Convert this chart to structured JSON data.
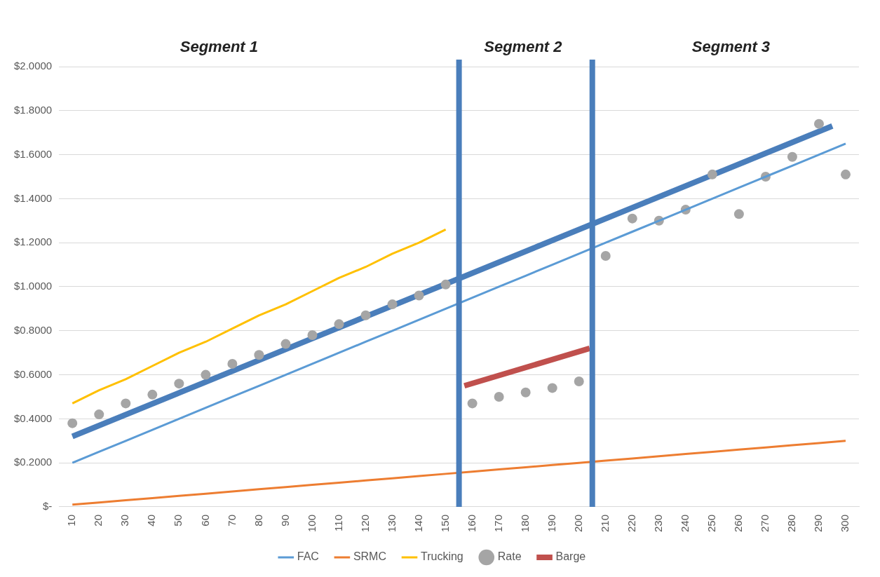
{
  "chart_data": {
    "type": "line",
    "annotations": [
      "Segment 1",
      "Segment 2",
      "Segment 3"
    ],
    "x": [
      10,
      20,
      30,
      40,
      50,
      60,
      70,
      80,
      90,
      100,
      110,
      120,
      130,
      140,
      150,
      160,
      170,
      180,
      190,
      200,
      210,
      220,
      230,
      240,
      250,
      260,
      270,
      280,
      290,
      300
    ],
    "series": [
      {
        "name": "FAC",
        "color": "#5b9bd5",
        "values": [
          0.2,
          0.25,
          0.3,
          0.35,
          0.4,
          0.45,
          0.5,
          0.55,
          0.6,
          0.65,
          0.7,
          0.75,
          0.8,
          0.85,
          0.9,
          0.95,
          1.0,
          1.05,
          1.1,
          1.15,
          1.2,
          1.25,
          1.3,
          1.35,
          1.4,
          1.45,
          1.5,
          1.55,
          1.6,
          1.65
        ]
      },
      {
        "name": "SRMC",
        "color": "#ed7d31",
        "values": [
          0.01,
          0.02,
          0.03,
          0.04,
          0.05,
          0.06,
          0.07,
          0.08,
          0.09,
          0.1,
          0.11,
          0.12,
          0.13,
          0.14,
          0.15,
          0.16,
          0.17,
          0.18,
          0.19,
          0.2,
          0.21,
          0.22,
          0.23,
          0.24,
          0.25,
          0.26,
          0.27,
          0.28,
          0.29,
          0.3
        ]
      },
      {
        "name": "Trucking",
        "color": "#ffc000",
        "x": [
          10,
          20,
          30,
          40,
          50,
          60,
          70,
          80,
          90,
          100,
          110,
          120,
          130,
          140,
          150
        ],
        "values": [
          0.47,
          0.53,
          0.58,
          0.64,
          0.7,
          0.75,
          0.81,
          0.87,
          0.92,
          0.98,
          1.04,
          1.09,
          1.15,
          1.2,
          1.26
        ]
      },
      {
        "name": "Rate",
        "type": "scatter",
        "marker": "circle",
        "color": "#a5a5a5",
        "values": [
          0.38,
          0.42,
          0.47,
          0.51,
          0.56,
          0.6,
          0.65,
          0.69,
          0.74,
          0.78,
          0.83,
          0.87,
          0.92,
          0.96,
          1.01,
          0.47,
          0.5,
          0.52,
          0.54,
          0.57,
          1.14,
          1.31,
          1.3,
          1.35,
          1.51,
          1.33,
          1.5,
          1.59,
          1.74,
          1.51
        ]
      },
      {
        "name": "Barge",
        "color": "#c0504d",
        "x": [
          157,
          204
        ],
        "values": [
          0.55,
          0.72
        ]
      },
      {
        "color": "#4a7ebb",
        "x": [
          10,
          295
        ],
        "values": [
          0.32,
          1.73
        ]
      }
    ],
    "ref_lines": [
      {
        "axis": "x",
        "value": 155,
        "color": "#4a7ebb"
      },
      {
        "axis": "x",
        "value": 205,
        "color": "#4a7ebb"
      }
    ],
    "xlim": [
      5,
      305
    ],
    "xticks": [
      10,
      20,
      30,
      40,
      50,
      60,
      70,
      80,
      90,
      100,
      110,
      120,
      130,
      140,
      150,
      160,
      170,
      180,
      190,
      200,
      210,
      220,
      230,
      240,
      250,
      260,
      270,
      280,
      290,
      300
    ],
    "ylim": [
      0,
      2
    ],
    "yticks": [
      {
        "value": 0,
        "label": "$-"
      },
      {
        "value": 0.2,
        "label": "$0.2000"
      },
      {
        "value": 0.4,
        "label": "$0.4000"
      },
      {
        "value": 0.6,
        "label": "$0.6000"
      },
      {
        "value": 0.8,
        "label": "$0.8000"
      },
      {
        "value": 1,
        "label": "$1.0000"
      },
      {
        "value": 1.2,
        "label": "$1.2000"
      },
      {
        "value": 1.4,
        "label": "$1.4000"
      },
      {
        "value": 1.6,
        "label": "$1.6000"
      },
      {
        "value": 1.8,
        "label": "$1.8000"
      },
      {
        "value": 2,
        "label": "$2.0000"
      }
    ],
    "grid": "y",
    "legend": "bottom",
    "marker": "none",
    "line_style": "solid"
  }
}
